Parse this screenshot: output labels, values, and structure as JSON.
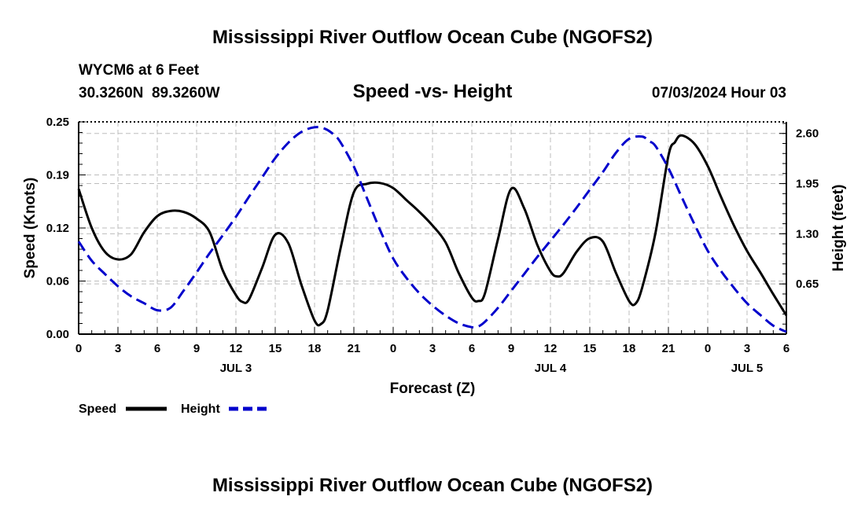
{
  "page": {
    "title": "Mississippi River Outflow Ocean Cube (NGOFS2)",
    "footer_title": "Mississippi River Outflow Ocean Cube (NGOFS2)"
  },
  "chart_data": {
    "type": "line",
    "title": "Speed -vs- Height",
    "station": "WYCM6 at 6 Feet",
    "coords": "30.3260N  89.3260W",
    "timestamp": "07/03/2024 Hour 03",
    "xlabel": "Forecast (Z)",
    "ylabel_left": "Speed (Knots)",
    "ylabel_right": "Height (feet)",
    "x_range_hours": [
      0,
      54
    ],
    "ylim_left": [
      0,
      0.25
    ],
    "ylim_right": [
      0.0,
      2.75
    ],
    "x_ticks": [
      {
        "h": 0,
        "label": "0"
      },
      {
        "h": 3,
        "label": "3"
      },
      {
        "h": 6,
        "label": "6"
      },
      {
        "h": 9,
        "label": "9"
      },
      {
        "h": 12,
        "label": "12"
      },
      {
        "h": 15,
        "label": "15"
      },
      {
        "h": 18,
        "label": "18"
      },
      {
        "h": 21,
        "label": "21"
      },
      {
        "h": 24,
        "label": "0"
      },
      {
        "h": 27,
        "label": "3"
      },
      {
        "h": 30,
        "label": "6"
      },
      {
        "h": 33,
        "label": "9"
      },
      {
        "h": 36,
        "label": "12"
      },
      {
        "h": 39,
        "label": "15"
      },
      {
        "h": 42,
        "label": "18"
      },
      {
        "h": 45,
        "label": "21"
      },
      {
        "h": 48,
        "label": "0"
      },
      {
        "h": 51,
        "label": "3"
      },
      {
        "h": 54,
        "label": "6"
      }
    ],
    "day_labels": [
      {
        "h": 12,
        "label": "JUL 3"
      },
      {
        "h": 36,
        "label": "JUL 4"
      },
      {
        "h": 51,
        "label": "JUL 5"
      }
    ],
    "y_ticks_left": [
      {
        "v": 0.0,
        "label": "0.00"
      },
      {
        "v": 0.0625,
        "label": "0.06"
      },
      {
        "v": 0.125,
        "label": "0.12"
      },
      {
        "v": 0.1875,
        "label": "0.19"
      },
      {
        "v": 0.25,
        "label": "0.25"
      }
    ],
    "y_ticks_right": [
      {
        "v": 0.65,
        "label": "0.65"
      },
      {
        "v": 1.3,
        "label": "1.30"
      },
      {
        "v": 1.95,
        "label": "1.95"
      },
      {
        "v": 2.6,
        "label": "2.60"
      }
    ],
    "series": [
      {
        "name": "Speed",
        "axis": "left",
        "color": "#000000",
        "dash": "solid",
        "x": [
          0,
          1,
          2,
          3,
          4,
          5,
          6,
          7,
          8,
          9,
          10,
          11,
          12,
          12.5,
          13,
          14,
          15,
          16,
          17,
          18,
          18.5,
          19,
          20,
          21,
          22,
          23,
          24,
          25,
          26,
          27,
          28,
          29,
          30,
          30.5,
          31,
          32,
          33,
          34,
          35,
          36,
          36.5,
          37,
          38,
          39,
          40,
          41,
          42,
          42.5,
          43,
          44,
          45,
          45.5,
          46,
          47,
          48,
          49,
          50,
          51,
          52,
          53,
          54
        ],
        "values": [
          0.171,
          0.125,
          0.097,
          0.088,
          0.094,
          0.12,
          0.139,
          0.145,
          0.144,
          0.136,
          0.12,
          0.075,
          0.046,
          0.038,
          0.041,
          0.078,
          0.117,
          0.107,
          0.058,
          0.016,
          0.012,
          0.028,
          0.102,
          0.167,
          0.177,
          0.178,
          0.172,
          0.158,
          0.144,
          0.128,
          0.108,
          0.072,
          0.043,
          0.039,
          0.048,
          0.112,
          0.171,
          0.148,
          0.105,
          0.074,
          0.068,
          0.072,
          0.097,
          0.113,
          0.109,
          0.072,
          0.039,
          0.036,
          0.055,
          0.118,
          0.21,
          0.226,
          0.234,
          0.224,
          0.198,
          0.162,
          0.128,
          0.098,
          0.073,
          0.047,
          0.022
        ]
      },
      {
        "name": "Height",
        "axis": "right",
        "color": "#0000cc",
        "dash": "dashed",
        "x": [
          0,
          1,
          2,
          3,
          4,
          5,
          6,
          7,
          8,
          9,
          10,
          11,
          12,
          13,
          14,
          15,
          16,
          17,
          18,
          18.8,
          19.5,
          20,
          21,
          22,
          23,
          24,
          25,
          26,
          27,
          28,
          29,
          30,
          30.5,
          31,
          32,
          33,
          34,
          35,
          36,
          37,
          38,
          39,
          40,
          41,
          42,
          43,
          43.5,
          44,
          45,
          46,
          47,
          48,
          49,
          50,
          51,
          52,
          53,
          54
        ],
        "values": [
          1.2,
          0.95,
          0.78,
          0.62,
          0.49,
          0.4,
          0.31,
          0.34,
          0.56,
          0.8,
          1.05,
          1.28,
          1.52,
          1.78,
          2.03,
          2.28,
          2.48,
          2.62,
          2.68,
          2.66,
          2.58,
          2.48,
          2.17,
          1.76,
          1.35,
          0.98,
          0.73,
          0.53,
          0.37,
          0.24,
          0.14,
          0.09,
          0.1,
          0.16,
          0.34,
          0.56,
          0.78,
          1.0,
          1.21,
          1.42,
          1.64,
          1.87,
          2.1,
          2.35,
          2.53,
          2.56,
          2.5,
          2.44,
          2.15,
          1.78,
          1.42,
          1.08,
          0.82,
          0.6,
          0.4,
          0.25,
          0.11,
          0.03
        ]
      }
    ],
    "legend": [
      {
        "label": "Speed",
        "color": "#000000",
        "dash": "solid"
      },
      {
        "label": "Height",
        "color": "#0000cc",
        "dash": "dashed"
      }
    ]
  }
}
